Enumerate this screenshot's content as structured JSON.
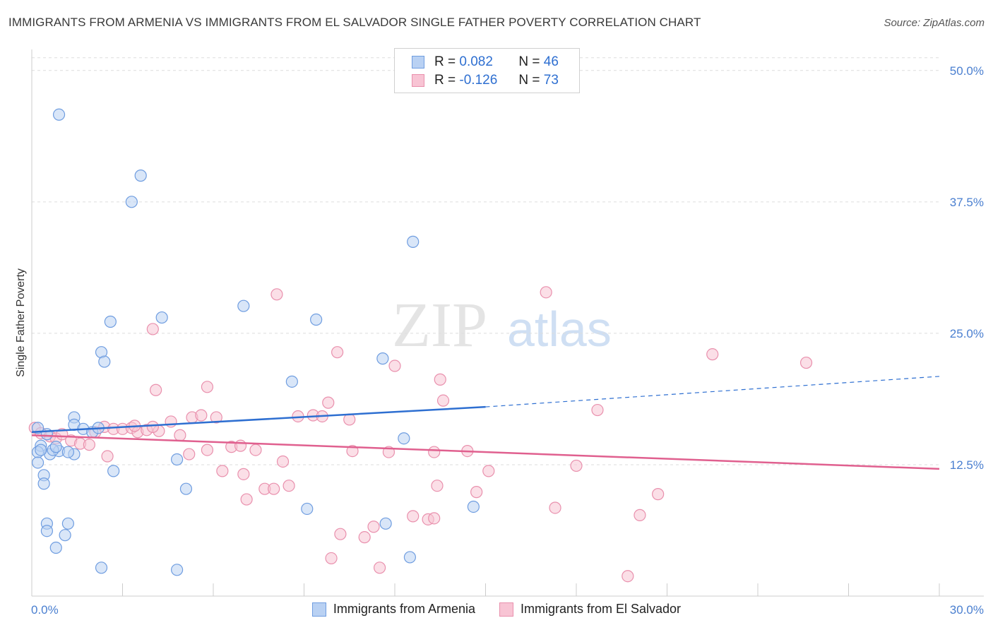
{
  "title": "IMMIGRANTS FROM ARMENIA VS IMMIGRANTS FROM EL SALVADOR SINGLE FATHER POVERTY CORRELATION CHART",
  "source": "Source: ZipAtlas.com",
  "watermark": {
    "zip": "ZIP",
    "atlas": "atlas"
  },
  "legend": {
    "r_label": "R =",
    "n_label": "N =",
    "armenia": {
      "r": "0.082",
      "n": "46"
    },
    "elsalvador": {
      "r": "-0.126",
      "n": "73"
    }
  },
  "colors": {
    "armenia_fill": "#b9d1f3",
    "armenia_stroke": "#6f9de0",
    "armenia_line": "#2e6fd1",
    "elsalvador_fill": "#f8c4d4",
    "elsalvador_stroke": "#e990ad",
    "elsalvador_line": "#e0608f",
    "grid": "#dddddd",
    "tick_text": "#4a7fd0"
  },
  "chart_data": {
    "type": "scatter",
    "title": "IMMIGRANTS FROM ARMENIA VS IMMIGRANTS FROM EL SALVADOR SINGLE FATHER POVERTY CORRELATION CHART",
    "xlabel": "",
    "ylabel": "Single Father Poverty",
    "xlim": [
      0,
      30
    ],
    "ylim": [
      0,
      52
    ],
    "x_ticks": [
      "0.0%",
      "30.0%"
    ],
    "y_ticks": [
      {
        "value": 12.5,
        "label": "12.5%"
      },
      {
        "value": 25.0,
        "label": "25.0%"
      },
      {
        "value": 37.5,
        "label": "37.5%"
      },
      {
        "value": 50.0,
        "label": "50.0%"
      }
    ],
    "grid": true,
    "legend_position": "bottom",
    "series": [
      {
        "name": "Immigrants from Armenia",
        "trend": {
          "x0": 0,
          "y0": 15.6,
          "x1": 15,
          "y1": 18.0,
          "dash_to_x": 30,
          "dash_to_y": 20.9
        },
        "points": [
          [
            0.9,
            45.8
          ],
          [
            3.6,
            40.0
          ],
          [
            3.3,
            37.5
          ],
          [
            12.6,
            33.7
          ],
          [
            7.0,
            27.6
          ],
          [
            4.3,
            26.5
          ],
          [
            2.6,
            26.1
          ],
          [
            9.4,
            26.3
          ],
          [
            2.3,
            23.2
          ],
          [
            2.4,
            22.3
          ],
          [
            11.6,
            22.6
          ],
          [
            8.6,
            20.4
          ],
          [
            1.4,
            17.0
          ],
          [
            1.4,
            16.3
          ],
          [
            0.2,
            16.0
          ],
          [
            1.7,
            15.9
          ],
          [
            2.0,
            15.6
          ],
          [
            0.5,
            15.4
          ],
          [
            0.3,
            14.3
          ],
          [
            0.2,
            13.7
          ],
          [
            0.6,
            13.5
          ],
          [
            1.4,
            13.5
          ],
          [
            0.9,
            13.8
          ],
          [
            0.2,
            12.7
          ],
          [
            12.3,
            15.0
          ],
          [
            2.7,
            11.9
          ],
          [
            0.4,
            11.5
          ],
          [
            0.4,
            10.7
          ],
          [
            4.8,
            13.0
          ],
          [
            5.1,
            10.2
          ],
          [
            9.1,
            8.3
          ],
          [
            14.6,
            8.5
          ],
          [
            0.5,
            6.9
          ],
          [
            0.5,
            6.2
          ],
          [
            1.2,
            6.9
          ],
          [
            1.1,
            5.8
          ],
          [
            11.7,
            6.9
          ],
          [
            0.8,
            4.6
          ],
          [
            2.3,
            2.7
          ],
          [
            4.8,
            2.5
          ],
          [
            12.5,
            3.7
          ],
          [
            0.7,
            13.9
          ],
          [
            1.2,
            13.7
          ],
          [
            0.3,
            13.9
          ],
          [
            2.2,
            16.0
          ],
          [
            0.8,
            14.2
          ]
        ]
      },
      {
        "name": "Immigrants from El Salvador",
        "trend": {
          "x0": 0,
          "y0": 15.3,
          "x1": 30,
          "y1": 12.1
        },
        "points": [
          [
            0.1,
            16.0
          ],
          [
            0.3,
            15.5
          ],
          [
            0.6,
            15.2
          ],
          [
            0.8,
            15.0
          ],
          [
            1.0,
            15.4
          ],
          [
            1.3,
            14.8
          ],
          [
            1.6,
            14.5
          ],
          [
            1.9,
            14.4
          ],
          [
            2.1,
            15.6
          ],
          [
            2.4,
            16.1
          ],
          [
            2.7,
            15.9
          ],
          [
            3.0,
            15.9
          ],
          [
            3.3,
            16.0
          ],
          [
            3.5,
            15.6
          ],
          [
            3.8,
            15.8
          ],
          [
            4.2,
            15.7
          ],
          [
            4.6,
            16.6
          ],
          [
            4.9,
            15.3
          ],
          [
            5.3,
            17.0
          ],
          [
            5.6,
            17.2
          ],
          [
            6.1,
            17.0
          ],
          [
            3.4,
            16.2
          ],
          [
            4.0,
            16.1
          ],
          [
            2.5,
            13.3
          ],
          [
            5.2,
            13.5
          ],
          [
            5.8,
            13.9
          ],
          [
            6.6,
            14.2
          ],
          [
            6.9,
            14.3
          ],
          [
            7.4,
            13.9
          ],
          [
            8.3,
            12.8
          ],
          [
            6.3,
            11.9
          ],
          [
            7.0,
            11.6
          ],
          [
            7.7,
            10.2
          ],
          [
            8.0,
            10.2
          ],
          [
            8.5,
            10.5
          ],
          [
            7.1,
            9.2
          ],
          [
            4.0,
            25.4
          ],
          [
            4.1,
            19.6
          ],
          [
            5.8,
            19.9
          ],
          [
            8.1,
            28.7
          ],
          [
            10.1,
            23.2
          ],
          [
            10.5,
            16.8
          ],
          [
            8.8,
            17.1
          ],
          [
            9.3,
            17.2
          ],
          [
            9.6,
            17.1
          ],
          [
            9.8,
            18.4
          ],
          [
            10.6,
            13.8
          ],
          [
            11.3,
            6.6
          ],
          [
            12.0,
            21.9
          ],
          [
            11.8,
            13.7
          ],
          [
            13.5,
            20.6
          ],
          [
            13.6,
            18.6
          ],
          [
            14.4,
            13.8
          ],
          [
            13.3,
            13.7
          ],
          [
            13.4,
            10.5
          ],
          [
            15.1,
            11.9
          ],
          [
            14.7,
            9.9
          ],
          [
            17.0,
            28.9
          ],
          [
            17.3,
            8.4
          ],
          [
            18.0,
            12.4
          ],
          [
            18.7,
            17.7
          ],
          [
            12.6,
            7.6
          ],
          [
            13.1,
            7.3
          ],
          [
            13.3,
            7.4
          ],
          [
            10.2,
            5.9
          ],
          [
            11.0,
            5.6
          ],
          [
            9.9,
            3.6
          ],
          [
            11.5,
            2.7
          ],
          [
            22.5,
            23.0
          ],
          [
            25.6,
            22.2
          ],
          [
            20.7,
            9.7
          ],
          [
            20.1,
            7.7
          ],
          [
            19.7,
            1.9
          ]
        ]
      }
    ]
  },
  "bottom_legend": {
    "armenia": "Immigrants from Armenia",
    "elsalvador": "Immigrants from El Salvador"
  }
}
